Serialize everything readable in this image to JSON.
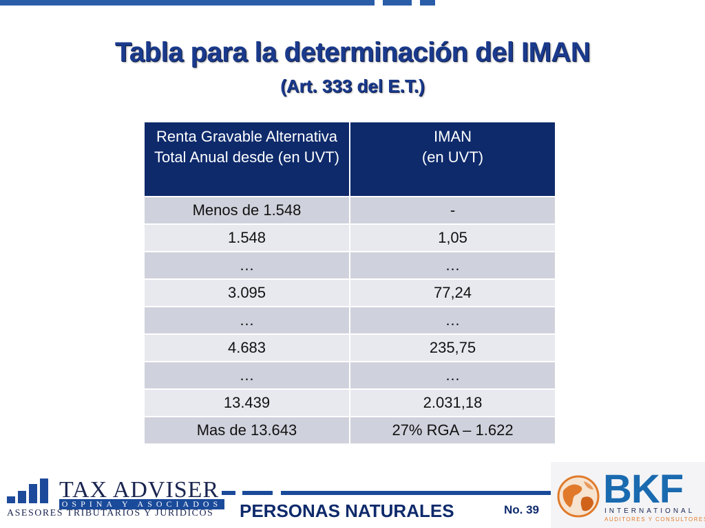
{
  "slide": {
    "title": "Tabla para la determinación del IMAN",
    "subtitle": "(Art. 333 del E.T.)"
  },
  "table": {
    "headers": [
      "Renta Gravable Alternativa Total Anual desde (en UVT)",
      "IMAN\n(en UVT)"
    ],
    "rows": [
      [
        "Menos de  1.548",
        "-"
      ],
      [
        "1.548",
        "1,05"
      ],
      [
        "…",
        "…"
      ],
      [
        "3.095",
        "77,24"
      ],
      [
        "…",
        "…"
      ],
      [
        "4.683",
        "235,75"
      ],
      [
        "…",
        "…"
      ],
      [
        "13.439",
        "2.031,18"
      ],
      [
        "Mas de 13.643",
        "27% RGA – 1.622"
      ]
    ]
  },
  "footer": {
    "section": "PERSONAS NATURALES",
    "slide_number": "No. 39",
    "left_logo": {
      "name": "TAX ADVISER",
      "sub": "OSPINA Y ASOCIADOS",
      "tagline": "ASESORES TRIBUTARIOS Y JURIDICOS"
    },
    "right_logo": {
      "name": "BKF",
      "line1": "INTERNATIONAL",
      "line2": "AUDITORES Y CONSULTORES"
    }
  },
  "colors": {
    "header_bg": "#0e2a6b",
    "title": "#1a3a8c",
    "row_odd": "#cfd1dc",
    "row_even": "#e8e9ef",
    "accent_blue": "#1a4a9a",
    "bkf_orange": "#e07a2a"
  }
}
